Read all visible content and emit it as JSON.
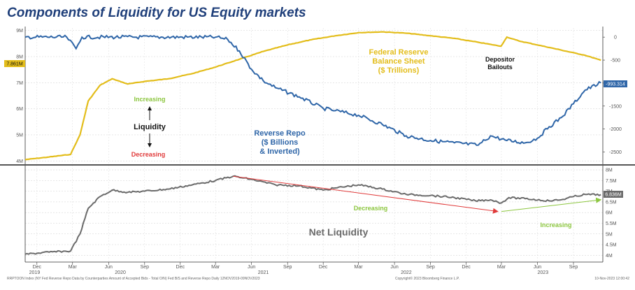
{
  "title": "Components of Liquidity for US Equity markets",
  "chart_data": [
    {
      "type": "line",
      "panel": "top",
      "left_axis": {
        "ticks": [
          "9M",
          "8M",
          "7M",
          "6M",
          "5M",
          "4M"
        ],
        "range_millions": [
          3.9,
          9.1
        ]
      },
      "right_axis": {
        "ticks": [
          "0",
          "-500",
          "-1000",
          "-1500",
          "-2000",
          "-2500"
        ],
        "range": [
          200,
          -2750
        ],
        "note": "inverted"
      },
      "grid": true,
      "series": [
        {
          "name": "Federal Reserve Balance Sheet ($ Trillions)",
          "axis": "left",
          "color": "#e3bd1b",
          "last_value_label": "7.861M",
          "points": [
            [
              "2019-11-01",
              4.05
            ],
            [
              "2020-01-01",
              4.15
            ],
            [
              "2020-02-25",
              4.25
            ],
            [
              "2020-03-20",
              5.0
            ],
            [
              "2020-04-10",
              6.3
            ],
            [
              "2020-05-10",
              6.9
            ],
            [
              "2020-06-10",
              7.15
            ],
            [
              "2020-07-20",
              6.95
            ],
            [
              "2020-09-01",
              7.05
            ],
            [
              "2020-11-01",
              7.15
            ],
            [
              "2021-01-01",
              7.35
            ],
            [
              "2021-03-01",
              7.6
            ],
            [
              "2021-05-01",
              7.9
            ],
            [
              "2021-07-01",
              8.2
            ],
            [
              "2021-09-01",
              8.45
            ],
            [
              "2021-11-01",
              8.65
            ],
            [
              "2022-01-01",
              8.8
            ],
            [
              "2022-03-01",
              8.92
            ],
            [
              "2022-05-01",
              8.95
            ],
            [
              "2022-07-01",
              8.9
            ],
            [
              "2022-09-01",
              8.8
            ],
            [
              "2022-11-01",
              8.7
            ],
            [
              "2023-01-01",
              8.55
            ],
            [
              "2023-02-28",
              8.4
            ],
            [
              "2023-03-15",
              8.75
            ],
            [
              "2023-04-15",
              8.6
            ],
            [
              "2023-06-01",
              8.45
            ],
            [
              "2023-08-01",
              8.25
            ],
            [
              "2023-10-01",
              8.05
            ],
            [
              "2023-11-10",
              7.861
            ]
          ]
        },
        {
          "name": "Reverse Repo ($ Billions & Inverted)",
          "axis": "right",
          "color": "#2f66a8",
          "last_value_label": "-993.314",
          "points": [
            [
              "2019-11-01",
              0
            ],
            [
              "2020-02-15",
              0
            ],
            [
              "2020-03-10",
              -250
            ],
            [
              "2020-03-25",
              0
            ],
            [
              "2021-03-01",
              0
            ],
            [
              "2021-04-01",
              -50
            ],
            [
              "2021-05-01",
              -300
            ],
            [
              "2021-06-01",
              -700
            ],
            [
              "2021-07-01",
              -950
            ],
            [
              "2021-08-01",
              -1100
            ],
            [
              "2021-10-01",
              -1300
            ],
            [
              "2021-12-01",
              -1550
            ],
            [
              "2022-01-01",
              -1600
            ],
            [
              "2022-03-01",
              -1700
            ],
            [
              "2022-05-01",
              -1900
            ],
            [
              "2022-07-01",
              -2150
            ],
            [
              "2022-09-01",
              -2250
            ],
            [
              "2022-11-01",
              -2300
            ],
            [
              "2023-01-01",
              -2350
            ],
            [
              "2023-02-01",
              -2150
            ],
            [
              "2023-03-15",
              -2250
            ],
            [
              "2023-05-01",
              -2300
            ],
            [
              "2023-06-01",
              -2200
            ],
            [
              "2023-07-01",
              -1950
            ],
            [
              "2023-08-01",
              -1750
            ],
            [
              "2023-09-01",
              -1450
            ],
            [
              "2023-10-01",
              -1150
            ],
            [
              "2023-11-10",
              -993.314
            ]
          ]
        }
      ],
      "annotations": {
        "fed_label": [
          "Federal Reserve",
          "Balance Sheet",
          "($ Trillions)"
        ],
        "rrp_label": [
          "Reverse Repo",
          "($ Billions",
          "& Inverted)"
        ],
        "bailouts_label": [
          "Depositor",
          "Bailouts"
        ],
        "increasing": "Increasing",
        "liquidity": "Liquidity",
        "decreasing": "Decreasing"
      }
    },
    {
      "type": "line",
      "panel": "bottom",
      "right_axis": {
        "ticks": [
          "8M",
          "7.5M",
          "7M",
          "6.5M",
          "6M",
          "5.5M",
          "5M",
          "4.5M",
          "4M"
        ],
        "range_millions": [
          3.75,
          8.1
        ]
      },
      "grid": true,
      "series": [
        {
          "name": "Net Liquidity",
          "color": "#6b6b6b",
          "last_value_label": "6.836M",
          "points": [
            [
              "2019-11-01",
              4.05
            ],
            [
              "2020-01-01",
              4.15
            ],
            [
              "2020-02-25",
              4.2
            ],
            [
              "2020-03-20",
              5.0
            ],
            [
              "2020-04-10",
              6.2
            ],
            [
              "2020-05-10",
              6.75
            ],
            [
              "2020-06-10",
              7.05
            ],
            [
              "2020-07-20",
              6.95
            ],
            [
              "2020-09-01",
              7.0
            ],
            [
              "2020-11-01",
              7.1
            ],
            [
              "2021-01-01",
              7.3
            ],
            [
              "2021-03-01",
              7.5
            ],
            [
              "2021-04-15",
              7.7
            ],
            [
              "2021-06-01",
              7.55
            ],
            [
              "2021-08-01",
              7.3
            ],
            [
              "2021-10-01",
              7.25
            ],
            [
              "2021-12-01",
              7.05
            ],
            [
              "2022-01-01",
              7.15
            ],
            [
              "2022-03-01",
              7.3
            ],
            [
              "2022-05-01",
              7.1
            ],
            [
              "2022-07-01",
              6.85
            ],
            [
              "2022-09-01",
              6.8
            ],
            [
              "2022-11-01",
              6.7
            ],
            [
              "2022-12-25",
              6.55
            ],
            [
              "2023-02-01",
              6.6
            ],
            [
              "2023-03-01",
              6.45
            ],
            [
              "2023-03-20",
              6.7
            ],
            [
              "2023-05-01",
              6.65
            ],
            [
              "2023-07-01",
              6.55
            ],
            [
              "2023-08-01",
              6.6
            ],
            [
              "2023-09-01",
              6.75
            ],
            [
              "2023-10-01",
              6.85
            ],
            [
              "2023-11-10",
              6.836
            ]
          ]
        }
      ],
      "annotations": {
        "net_label": "Net Liquidity",
        "decreasing": "Decreasing",
        "increasing": "Increasing",
        "red_arrow": {
          "from": [
            "2021-04-15",
            7.7
          ],
          "to": [
            "2023-02-20",
            6.05
          ]
        },
        "green_arrow": {
          "from": [
            "2023-03-01",
            6.05
          ],
          "to": [
            "2023-11-10",
            6.6
          ]
        }
      }
    }
  ],
  "x_axis": {
    "months": [
      {
        "label": "Dec",
        "date": "2019-12-01"
      },
      {
        "label": "Mar",
        "date": "2020-03-01"
      },
      {
        "label": "Jun",
        "date": "2020-06-01"
      },
      {
        "label": "Sep",
        "date": "2020-09-01"
      },
      {
        "label": "Dec",
        "date": "2020-12-01"
      },
      {
        "label": "Mar",
        "date": "2021-03-01"
      },
      {
        "label": "Jun",
        "date": "2021-06-01"
      },
      {
        "label": "Sep",
        "date": "2021-09-01"
      },
      {
        "label": "Dec",
        "date": "2021-12-01"
      },
      {
        "label": "Mar",
        "date": "2022-03-01"
      },
      {
        "label": "Jun",
        "date": "2022-06-01"
      },
      {
        "label": "Sep",
        "date": "2022-09-01"
      },
      {
        "label": "Dec",
        "date": "2022-12-01"
      },
      {
        "label": "Mar",
        "date": "2023-03-01"
      },
      {
        "label": "Jun",
        "date": "2023-06-01"
      },
      {
        "label": "Sep",
        "date": "2023-09-01"
      }
    ],
    "years": [
      {
        "label": "2019",
        "date": "2019-11-25"
      },
      {
        "label": "2020",
        "date": "2020-07-01"
      },
      {
        "label": "2021",
        "date": "2021-07-01"
      },
      {
        "label": "2022",
        "date": "2022-07-01"
      },
      {
        "label": "2023",
        "date": "2023-06-15"
      }
    ],
    "range": [
      "2019-11-01",
      "2023-11-15"
    ]
  },
  "footer": {
    "left": "RRPTOON Index (NY Fed Reverse Repo Data by Counterparties Amount of Accepted Bids - Total O/N) Fed B/S and Reverse Repo  Daily 12NOV2019-09NOV2023",
    "center": "Copyright© 2023 Bloomberg Finance L.P.",
    "right": "10-Nov-2023 12:00:42"
  }
}
